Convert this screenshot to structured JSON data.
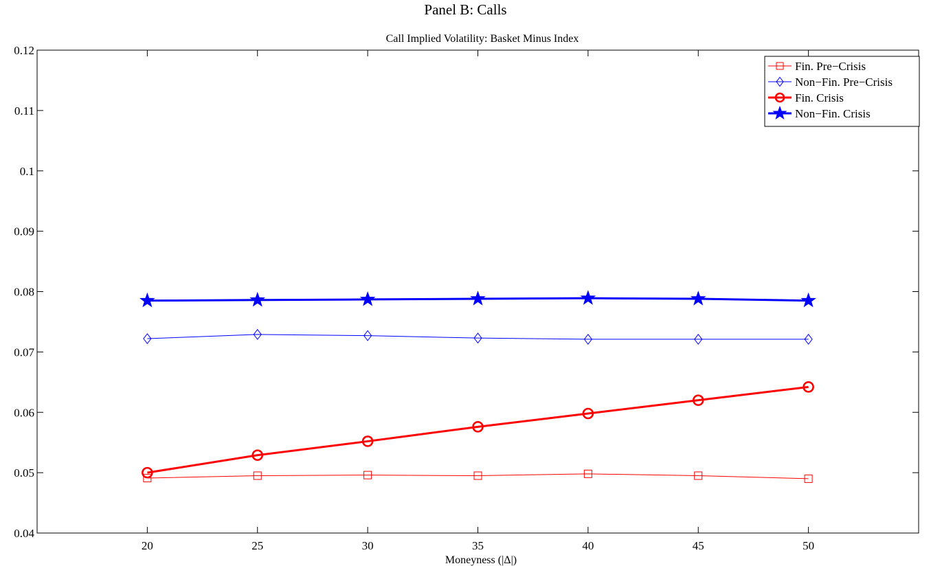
{
  "supertitle": "Panel B: Calls",
  "chart_data": {
    "type": "line",
    "title": "Call Implied Volatility: Basket Minus Index",
    "xlabel": "Moneyness (|Δ|)",
    "ylabel": "",
    "xlim": [
      15,
      55
    ],
    "ylim": [
      0.04,
      0.12
    ],
    "x": [
      20,
      25,
      30,
      35,
      40,
      45,
      50
    ],
    "xticks": [
      20,
      25,
      30,
      35,
      40,
      45,
      50
    ],
    "yticks": [
      0.04,
      0.05,
      0.06,
      0.07,
      0.08,
      0.09,
      0.1,
      0.11,
      0.12
    ],
    "ytick_labels": [
      "0.04",
      "0.05",
      "0.06",
      "0.07",
      "0.08",
      "0.09",
      "0.1",
      "0.11",
      "0.12"
    ],
    "grid": false,
    "legend_position": "top-right",
    "series": [
      {
        "name": "Fin. Pre−Crisis",
        "color": "#ff0000",
        "marker": "square",
        "weight": "thin",
        "values": [
          0.0491,
          0.0495,
          0.0496,
          0.0495,
          0.0498,
          0.0495,
          0.049
        ]
      },
      {
        "name": "Non−Fin. Pre−Crisis",
        "color": "#0000ff",
        "marker": "diamond",
        "weight": "thin",
        "values": [
          0.0722,
          0.0729,
          0.0727,
          0.0723,
          0.0721,
          0.0721,
          0.0721
        ]
      },
      {
        "name": "Fin. Crisis",
        "color": "#ff0000",
        "marker": "circle",
        "weight": "thick",
        "values": [
          0.05,
          0.0529,
          0.0552,
          0.0576,
          0.0598,
          0.062,
          0.0642
        ]
      },
      {
        "name": "Non−Fin. Crisis",
        "color": "#0000ff",
        "marker": "star",
        "weight": "thick",
        "values": [
          0.0785,
          0.0786,
          0.0787,
          0.0788,
          0.0789,
          0.0788,
          0.0785
        ]
      }
    ]
  }
}
